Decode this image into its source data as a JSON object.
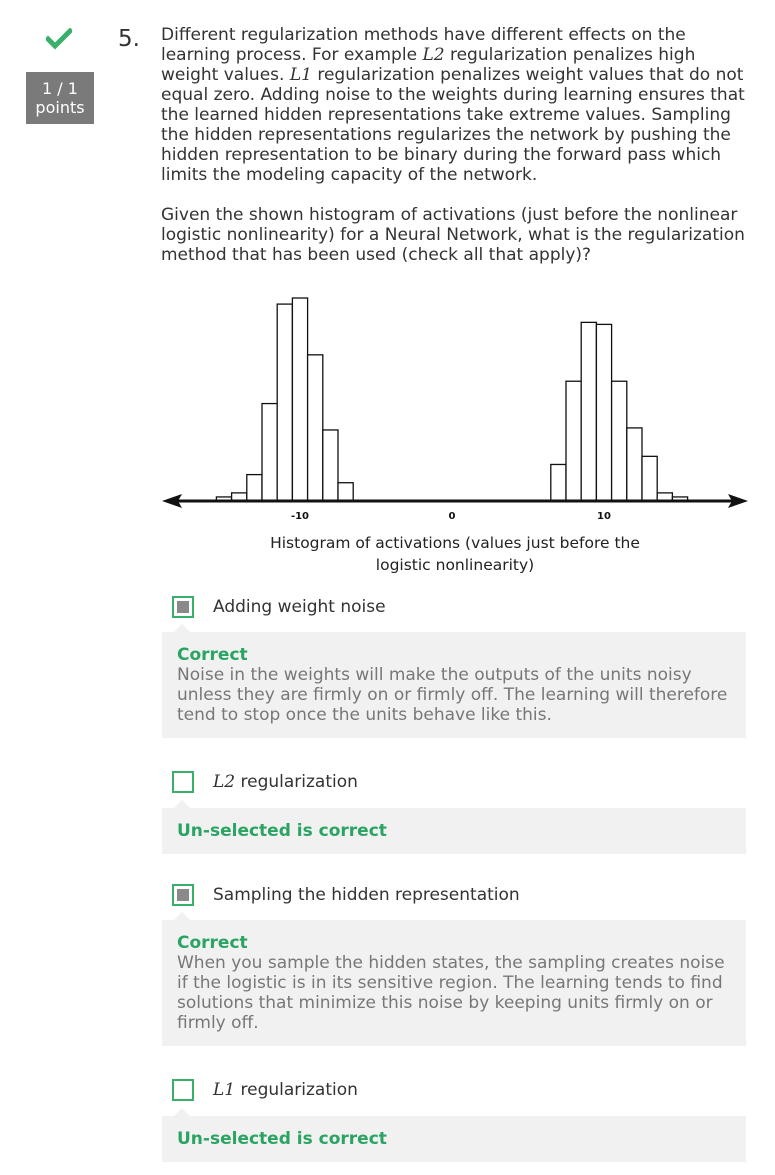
{
  "status": {
    "icon": "checkmark-icon",
    "color": "#3aaf6b",
    "score": "1 / 1",
    "points_label": "points"
  },
  "question": {
    "number": "5.",
    "p1_a": "Different regularization methods have different effects on the learning process. For example ",
    "p1_l2": "L2",
    "p1_b": " regularization penalizes high weight values. ",
    "p1_l1": "L1",
    "p1_c": " regularization penalizes weight values that do not equal zero. Adding noise to the weights during learning ensures that the learned hidden representations take extreme values. Sampling the hidden representations regularizes the network by pushing the hidden representation to be binary during the forward pass which limits the modeling capacity of the network.",
    "p2": "Given the shown histogram of activations (just before the nonlinear logistic nonlinearity) for a Neural Network, what is the regularization method that has been used (check all that apply)?"
  },
  "chart_data": {
    "type": "bar",
    "title": "Histogram of activations (values just before the logistic nonlinearity)",
    "caption_line1": "Histogram of activations (values just before the",
    "caption_line2": "logistic nonlinearity)",
    "x_ticks": [
      "-10",
      "0",
      "10"
    ],
    "bin_width": 1,
    "bins": [
      {
        "x": -15,
        "h": 2
      },
      {
        "x": -14,
        "h": 4
      },
      {
        "x": -13,
        "h": 13
      },
      {
        "x": -12,
        "h": 48
      },
      {
        "x": -11,
        "h": 97
      },
      {
        "x": -10,
        "h": 100
      },
      {
        "x": -9,
        "h": 72
      },
      {
        "x": -8,
        "h": 35
      },
      {
        "x": -7,
        "h": 9
      },
      {
        "x": 7,
        "h": 18
      },
      {
        "x": 8,
        "h": 59
      },
      {
        "x": 9,
        "h": 88
      },
      {
        "x": 10,
        "h": 87
      },
      {
        "x": 11,
        "h": 59
      },
      {
        "x": 12,
        "h": 36
      },
      {
        "x": 13,
        "h": 22
      },
      {
        "x": 14,
        "h": 4
      },
      {
        "x": 15,
        "h": 2
      }
    ],
    "xlim": [
      -19,
      19
    ],
    "ylim": [
      0,
      100
    ]
  },
  "options": [
    {
      "label_pre": "",
      "label_math": "",
      "label_post": "Adding weight noise",
      "checked": true,
      "feedback_title": "Correct",
      "feedback_text": "Noise in the weights will make the outputs of the units noisy unless they are firmly on or firmly off. The learning will therefore tend to stop once the units behave like this."
    },
    {
      "label_pre": "",
      "label_math": "L2",
      "label_post": " regularization",
      "checked": false,
      "feedback_title": "Un-selected is correct",
      "feedback_text": ""
    },
    {
      "label_pre": "",
      "label_math": "",
      "label_post": "Sampling the hidden representation",
      "checked": true,
      "feedback_title": "Correct",
      "feedback_text": "When you sample the hidden states, the sampling creates noise if the logistic is in its sensitive region. The learning tends to find solutions that minimize this noise by keeping units firmly on or firmly off."
    },
    {
      "label_pre": "",
      "label_math": "L1",
      "label_post": " regularization",
      "checked": false,
      "feedback_title": "Un-selected is correct",
      "feedback_text": ""
    }
  ]
}
